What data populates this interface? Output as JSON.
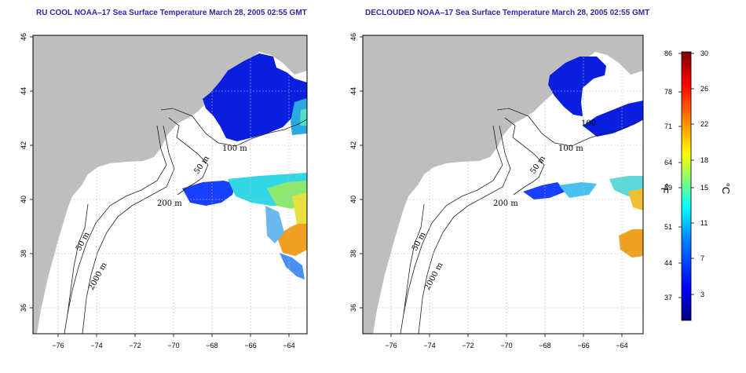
{
  "panels": [
    {
      "id": "left",
      "title": "RU COOL NOAA–17 Sea Surface Temperature March 28, 2005 02:55 GMT",
      "contour_labels": [
        "100 m",
        "50 m",
        "200 m",
        "50 m",
        "2000 m"
      ]
    },
    {
      "id": "right",
      "title": "DECLOUDED NOAA–17 Sea Surface Temperature March 28, 2005 02:55 GMT",
      "contour_labels": [
        "100",
        "100 m",
        "50 m",
        "200 m",
        "50 m",
        "2000 m"
      ]
    }
  ],
  "axes": {
    "x_ticks": [
      "−76",
      "−74",
      "−72",
      "−70",
      "−68",
      "−66",
      "−64"
    ],
    "y_ticks": [
      "46",
      "44",
      "42",
      "40",
      "38",
      "36"
    ]
  },
  "colorbar": {
    "left_unit": "°F",
    "right_unit": "°C",
    "f_ticks": [
      "86",
      "78",
      "71",
      "64",
      "59",
      "51",
      "44",
      "37"
    ],
    "c_ticks": [
      "30",
      "26",
      "22",
      "18",
      "15",
      "11",
      "7",
      "3"
    ],
    "colors": [
      "#00007f",
      "#0000ff",
      "#007fff",
      "#00ffff",
      "#7fff7f",
      "#ffff00",
      "#ff7f00",
      "#ff0000",
      "#7f0000"
    ]
  },
  "colors": {
    "land": "#bebebe",
    "title": "#2a2aa8",
    "grid": "#bdbdbd"
  }
}
